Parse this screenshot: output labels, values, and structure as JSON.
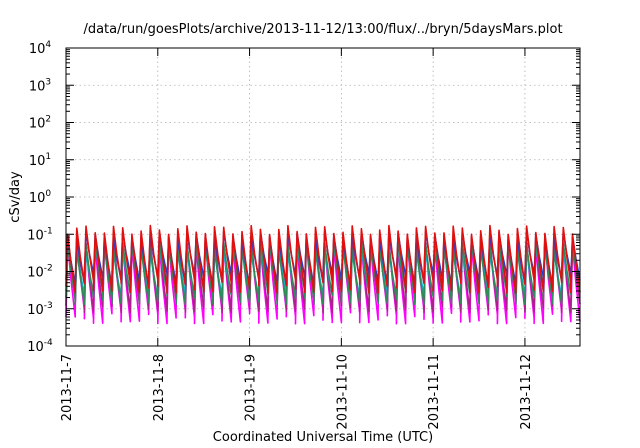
{
  "chart_data": {
    "type": "line",
    "title": "/data/run/goesPlots/archive/2013-11-12/13:00/flux/../bryn/5daysMars.plot",
    "xlabel": "Coordinated Universal Time (UTC)",
    "ylabel": "cSv/day",
    "x_tick_labels": [
      "2013-11-7",
      "2013-11-8",
      "2013-11-9",
      "2013-11-10",
      "2013-11-11",
      "2013-11-12"
    ],
    "y_ticks": [
      {
        "base": "10",
        "exp": "4"
      },
      {
        "base": "10",
        "exp": "3"
      },
      {
        "base": "10",
        "exp": "2"
      },
      {
        "base": "10",
        "exp": "1"
      },
      {
        "base": "10",
        "exp": "0"
      },
      {
        "base": "10",
        "exp": "-1"
      },
      {
        "base": "10",
        "exp": "-2"
      },
      {
        "base": "10",
        "exp": "-3"
      },
      {
        "base": "10",
        "exp": "-4"
      }
    ],
    "xlim_days": [
      0,
      5.6
    ],
    "ylim": [
      0.0001,
      10000
    ],
    "y_scale": "log",
    "grid": true,
    "sawtooth_cycles_per_day": 10,
    "series": [
      {
        "color": "#ff00ff",
        "peak": 0.06,
        "trough": 0.0006
      },
      {
        "color": "#aa2288",
        "peak": 0.075,
        "trough": 0.0012
      },
      {
        "color": "#00bcd4",
        "peak": 0.04,
        "trough": 0.003
      },
      {
        "color": "#2e8b57",
        "peak": 0.05,
        "trough": 0.002
      },
      {
        "color": "#1f3fd0",
        "peak": 0.09,
        "trough": 0.006
      },
      {
        "color": "#e01010",
        "peak": 0.13,
        "trough": 0.004
      }
    ]
  }
}
